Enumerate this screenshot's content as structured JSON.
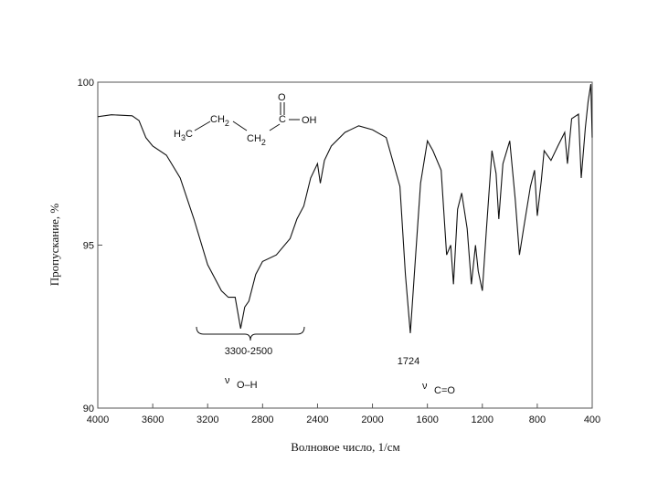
{
  "chart_data": {
    "type": "line",
    "x_label": "Волновое число, 1/см",
    "y_label": "Пропускание, %",
    "color": "#111111",
    "xlim": [
      4000,
      400
    ],
    "ylim": [
      90,
      100
    ],
    "xticks": [
      4000,
      3600,
      3200,
      2800,
      2400,
      2000,
      1600,
      1200,
      800,
      400
    ],
    "yticks": [
      90,
      95,
      100
    ],
    "x": [
      4000,
      3900,
      3750,
      3700,
      3650,
      3600,
      3500,
      3400,
      3300,
      3200,
      3100,
      3050,
      3000,
      2960,
      2930,
      2900,
      2850,
      2800,
      2700,
      2600,
      2550,
      2500,
      2450,
      2400,
      2380,
      2350,
      2300,
      2200,
      2100,
      2000,
      1900,
      1800,
      1760,
      1724,
      1690,
      1650,
      1600,
      1560,
      1500,
      1460,
      1430,
      1410,
      1380,
      1350,
      1310,
      1280,
      1250,
      1230,
      1200,
      1170,
      1130,
      1100,
      1080,
      1050,
      1000,
      960,
      930,
      900,
      850,
      820,
      800,
      770,
      750,
      700,
      650,
      600,
      580,
      550,
      500,
      480,
      450,
      430,
      410,
      400
    ],
    "values": [
      98.94,
      99.0,
      98.97,
      98.82,
      98.3,
      98.04,
      97.76,
      97.06,
      95.8,
      94.4,
      93.6,
      93.4,
      93.4,
      92.44,
      93.1,
      93.28,
      94.1,
      94.5,
      94.7,
      95.2,
      95.8,
      96.2,
      97.06,
      97.5,
      96.9,
      97.6,
      98.04,
      98.46,
      98.66,
      98.54,
      98.3,
      96.8,
      94.1,
      92.3,
      94.4,
      96.9,
      98.2,
      97.9,
      97.3,
      94.7,
      95.0,
      93.8,
      96.1,
      96.6,
      95.5,
      93.8,
      95.0,
      94.2,
      93.6,
      95.5,
      97.9,
      97.2,
      95.8,
      97.5,
      98.2,
      96.4,
      94.7,
      95.5,
      96.8,
      97.3,
      95.9,
      97.0,
      97.9,
      97.6,
      98.04,
      98.46,
      97.5,
      98.88,
      99.02,
      97.06,
      98.6,
      99.4,
      99.94,
      98.3
    ],
    "annotations": [
      "3300-2500",
      "1724"
    ],
    "vibrations": [
      {
        "symbol": "ν",
        "subscript": "O–H"
      },
      {
        "symbol": "ν",
        "subscript": "C=O"
      }
    ],
    "structure": [
      "H3C",
      "CH2",
      "CH2",
      "C",
      "O",
      "OH"
    ]
  }
}
